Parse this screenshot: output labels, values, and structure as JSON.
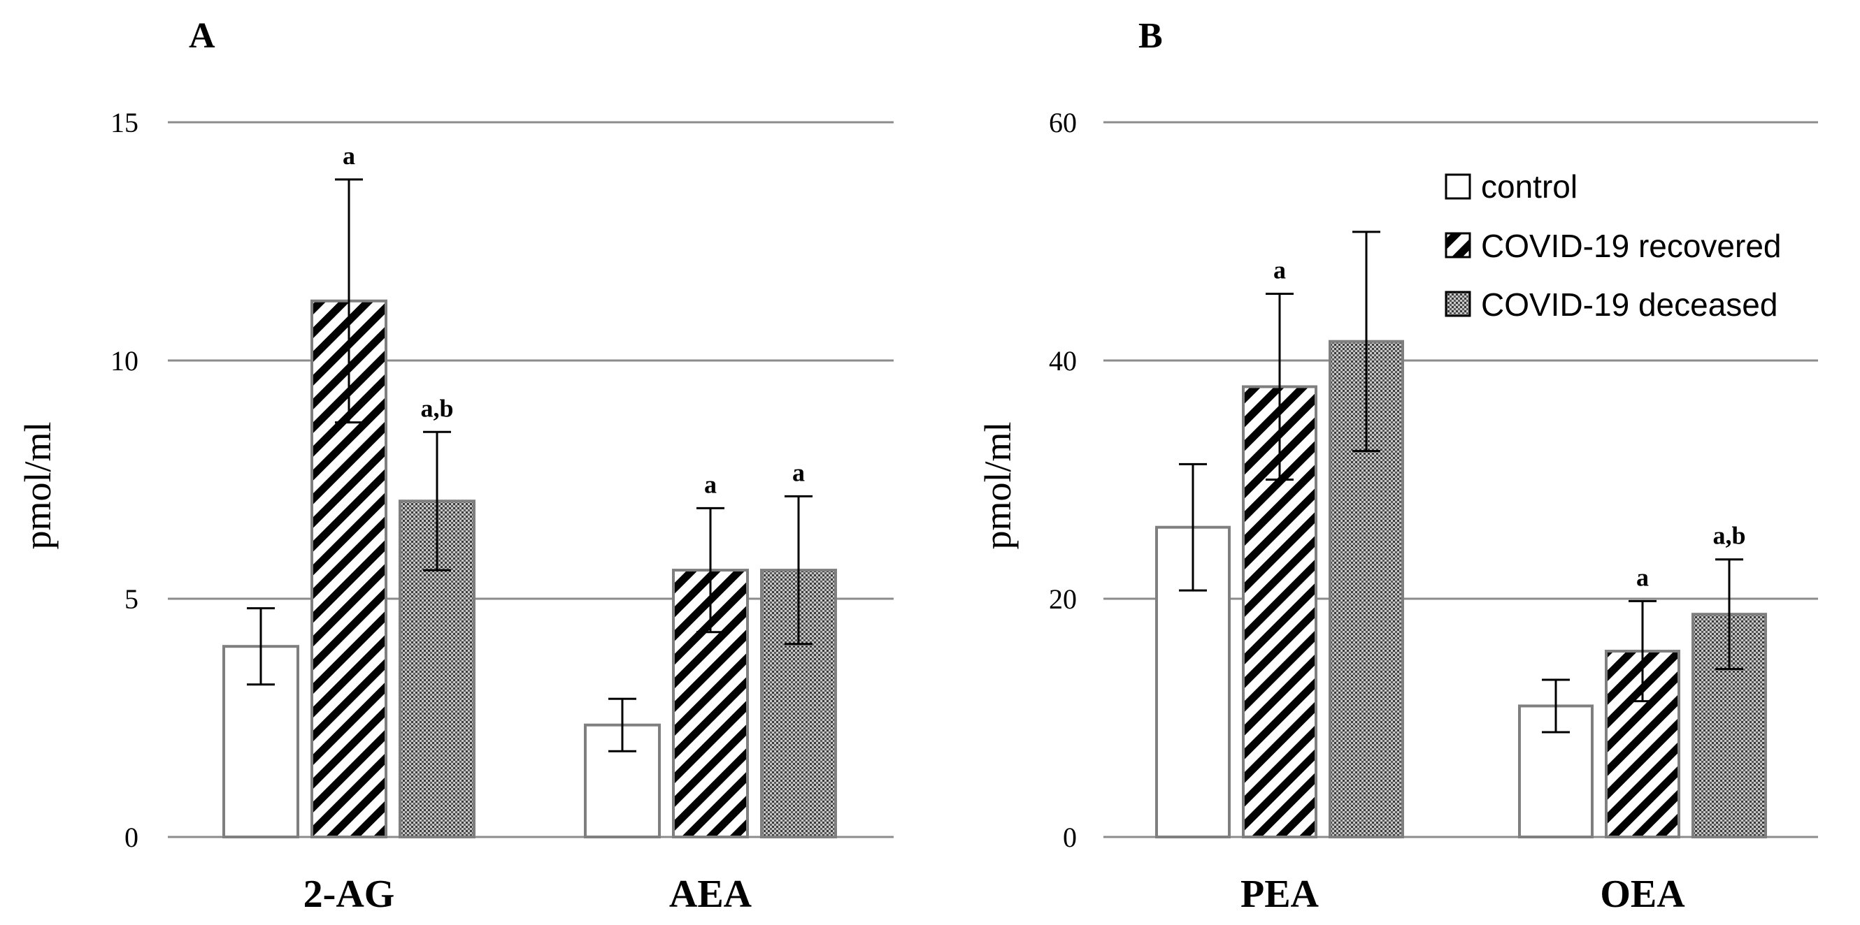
{
  "chart_data": [
    {
      "type": "bar",
      "panel": "A",
      "ylabel": "pmol/ml",
      "ylim": [
        0,
        15
      ],
      "yticks": [
        "0",
        "5",
        "10",
        "15"
      ],
      "categories": [
        "2-AG",
        "AEA"
      ],
      "series": [
        {
          "name": "control",
          "values": [
            4.0,
            2.35
          ],
          "errors": [
            0.8,
            0.55
          ],
          "labels": [
            "",
            ""
          ]
        },
        {
          "name": "COVID-19 recovered",
          "values": [
            11.25,
            5.6
          ],
          "errors": [
            2.55,
            1.3
          ],
          "labels": [
            "a",
            "a"
          ]
        },
        {
          "name": "COVID-19 deceased",
          "values": [
            7.05,
            5.6
          ],
          "errors": [
            1.45,
            1.55
          ],
          "labels": [
            "a,b",
            "a"
          ]
        }
      ]
    },
    {
      "type": "bar",
      "panel": "B",
      "ylabel": "pmol/ml",
      "ylim": [
        0,
        60
      ],
      "yticks": [
        "0",
        "20",
        "40",
        "60"
      ],
      "categories": [
        "PEA",
        "OEA"
      ],
      "series": [
        {
          "name": "control",
          "values": [
            26.0,
            11.0
          ],
          "errors": [
            5.3,
            2.2
          ],
          "labels": [
            "",
            ""
          ]
        },
        {
          "name": "COVID-19 recovered",
          "values": [
            37.8,
            15.6
          ],
          "errors": [
            7.8,
            4.2
          ],
          "labels": [
            "a",
            "a"
          ]
        },
        {
          "name": "COVID-19 deceased",
          "values": [
            41.6,
            18.7
          ],
          "errors": [
            9.2,
            4.6
          ],
          "labels": [
            "",
            "a,b"
          ]
        }
      ]
    }
  ],
  "legend": {
    "items": [
      "control",
      "COVID-19 recovered",
      "COVID-19 deceased"
    ],
    "placement": "top-right of panel B"
  },
  "colors": {
    "control": "#ffffff",
    "border": "#7f7f7f",
    "hatch": "#000000",
    "dots_bg": "#c8c8c8",
    "dots_fg": "#3a3a3a"
  }
}
